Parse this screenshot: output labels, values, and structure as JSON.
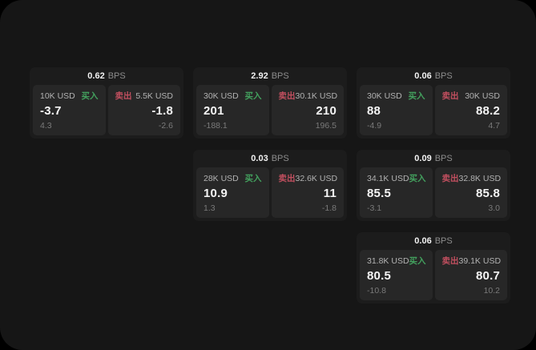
{
  "labels": {
    "bps_unit": "BPS",
    "buy": "买入",
    "sell": "卖出"
  },
  "colors": {
    "buy_green": "#43a15e",
    "sell_red": "#c14f5f",
    "page_bg": "#161616",
    "card_bg": "#1c1c1c",
    "panel_bg": "#272727"
  },
  "cards": [
    {
      "col": 1,
      "row": 1,
      "bps": "0.62",
      "buy": {
        "amount": "10K USD",
        "price": "-3.7",
        "delta": "4.3"
      },
      "sell": {
        "amount": "5.5K USD",
        "price": "-1.8",
        "delta": "-2.6"
      }
    },
    {
      "col": 2,
      "row": 1,
      "bps": "2.92",
      "buy": {
        "amount": "30K USD",
        "price": "201",
        "delta": "-188.1"
      },
      "sell": {
        "amount": "30.1K USD",
        "price": "210",
        "delta": "196.5"
      }
    },
    {
      "col": 3,
      "row": 1,
      "bps": "0.06",
      "buy": {
        "amount": "30K USD",
        "price": "88",
        "delta": "-4.9"
      },
      "sell": {
        "amount": "30K USD",
        "price": "88.2",
        "delta": "4.7"
      }
    },
    {
      "col": 2,
      "row": 2,
      "bps": "0.03",
      "buy": {
        "amount": "28K USD",
        "price": "10.9",
        "delta": "1.3"
      },
      "sell": {
        "amount": "32.6K USD",
        "price": "11",
        "delta": "-1.8"
      }
    },
    {
      "col": 3,
      "row": 2,
      "bps": "0.09",
      "buy": {
        "amount": "34.1K USD",
        "price": "85.5",
        "delta": "-3.1"
      },
      "sell": {
        "amount": "32.8K USD",
        "price": "85.8",
        "delta": "3.0"
      }
    },
    {
      "col": 3,
      "row": 3,
      "bps": "0.06",
      "buy": {
        "amount": "31.8K USD",
        "price": "80.5",
        "delta": "-10.8"
      },
      "sell": {
        "amount": "39.1K USD",
        "price": "80.7",
        "delta": "10.2"
      }
    }
  ]
}
